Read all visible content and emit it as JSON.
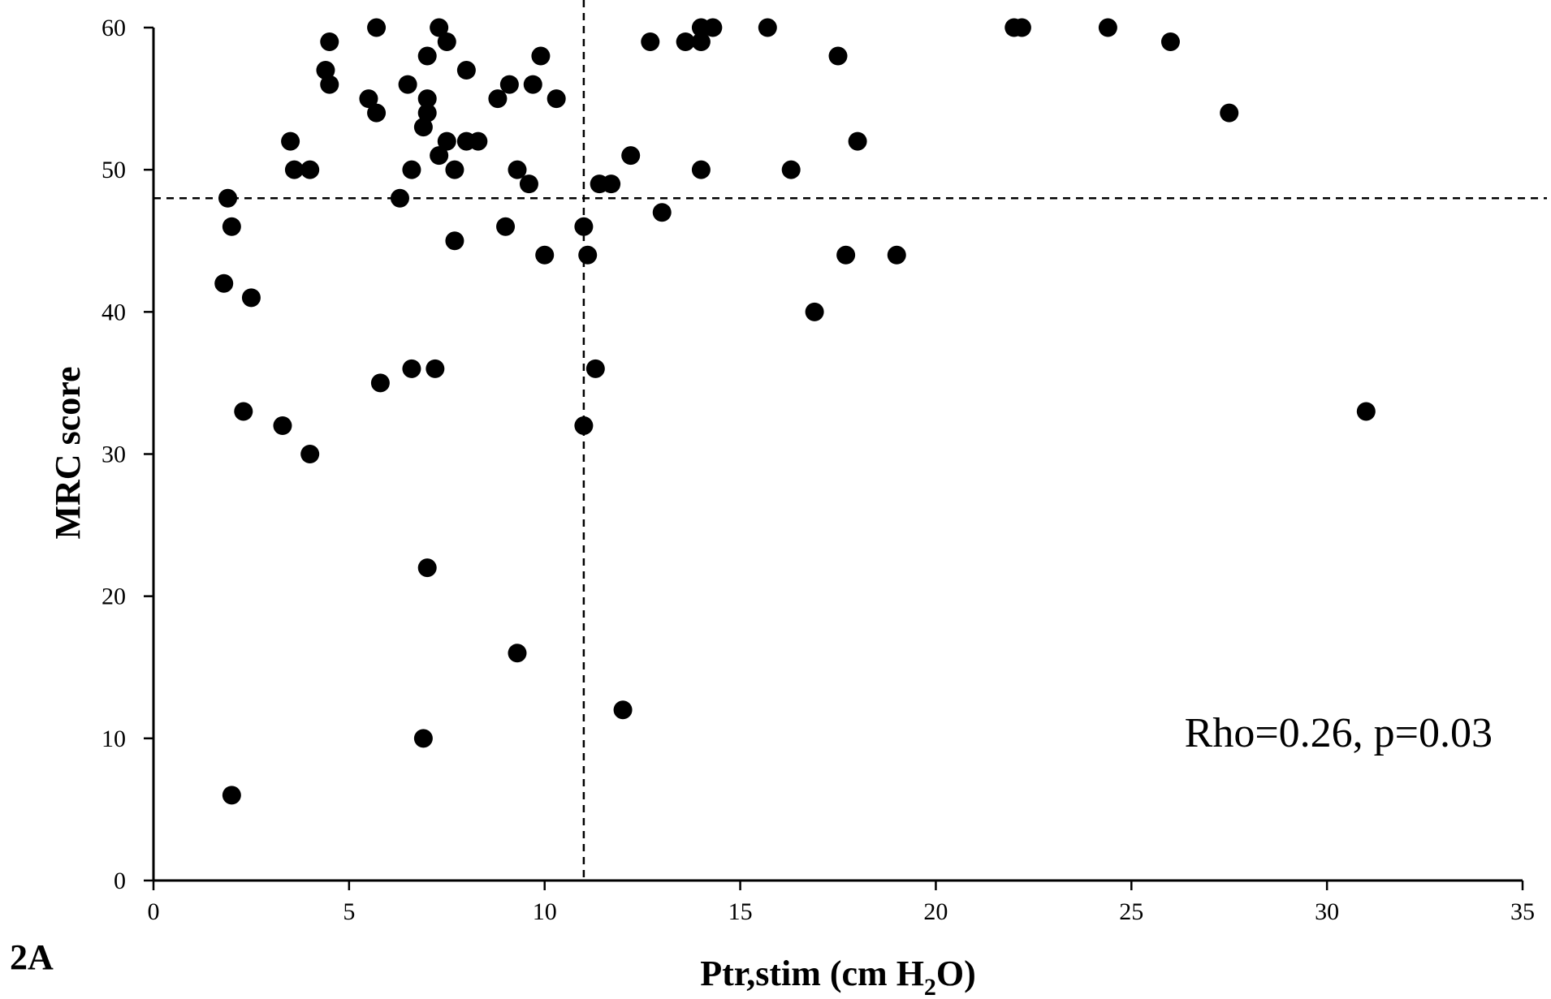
{
  "panel_label": "2A",
  "chart_data": {
    "type": "scatter",
    "xlabel": {
      "main": "Ptr,stim (cm H",
      "sub": "2",
      "end": "O)"
    },
    "ylabel": "MRC score",
    "xlim": [
      0,
      35
    ],
    "ylim": [
      0,
      60
    ],
    "x_ticks": [
      "0",
      "5",
      "10",
      "15",
      "20",
      "25",
      "30",
      "35"
    ],
    "y_ticks": [
      "0",
      "10",
      "20",
      "30",
      "40",
      "50",
      "60"
    ],
    "reference_lines": {
      "vertical_x": 11,
      "horizontal_y": 48
    },
    "annotation": "Rho=0.26, p=0.03",
    "marker_color": "#000000",
    "points": [
      [
        5.7,
        60
      ],
      [
        7.3,
        60
      ],
      [
        14.0,
        60
      ],
      [
        14.3,
        60
      ],
      [
        15.7,
        60
      ],
      [
        22.0,
        60
      ],
      [
        22.2,
        60
      ],
      [
        24.4,
        60
      ],
      [
        4.5,
        59
      ],
      [
        7.5,
        59
      ],
      [
        12.7,
        59
      ],
      [
        13.6,
        59
      ],
      [
        14.0,
        59
      ],
      [
        26.0,
        59
      ],
      [
        7.0,
        58
      ],
      [
        9.9,
        58
      ],
      [
        17.5,
        58
      ],
      [
        4.4,
        57
      ],
      [
        8.0,
        57
      ],
      [
        4.5,
        56
      ],
      [
        6.5,
        56
      ],
      [
        9.1,
        56
      ],
      [
        9.7,
        56
      ],
      [
        5.5,
        55
      ],
      [
        7.0,
        55
      ],
      [
        8.8,
        55
      ],
      [
        10.3,
        55
      ],
      [
        5.7,
        54
      ],
      [
        7.0,
        54
      ],
      [
        27.5,
        54
      ],
      [
        6.9,
        53
      ],
      [
        3.5,
        52
      ],
      [
        7.5,
        52
      ],
      [
        8.0,
        52
      ],
      [
        8.3,
        52
      ],
      [
        18.0,
        52
      ],
      [
        7.3,
        51
      ],
      [
        12.2,
        51
      ],
      [
        3.6,
        50
      ],
      [
        4.0,
        50
      ],
      [
        6.6,
        50
      ],
      [
        7.7,
        50
      ],
      [
        9.3,
        50
      ],
      [
        14.0,
        50
      ],
      [
        16.3,
        50
      ],
      [
        9.6,
        49
      ],
      [
        11.4,
        49
      ],
      [
        11.7,
        49
      ],
      [
        1.9,
        48
      ],
      [
        6.3,
        48
      ],
      [
        13.0,
        47
      ],
      [
        2.0,
        46
      ],
      [
        9.0,
        46
      ],
      [
        11.0,
        46
      ],
      [
        7.7,
        45
      ],
      [
        10.0,
        44
      ],
      [
        11.1,
        44
      ],
      [
        17.7,
        44
      ],
      [
        19.0,
        44
      ],
      [
        1.8,
        42
      ],
      [
        2.5,
        41
      ],
      [
        16.9,
        40
      ],
      [
        6.6,
        36
      ],
      [
        7.2,
        36
      ],
      [
        11.3,
        36
      ],
      [
        5.8,
        35
      ],
      [
        2.3,
        33
      ],
      [
        31.0,
        33
      ],
      [
        3.3,
        32
      ],
      [
        11.0,
        32
      ],
      [
        4.0,
        30
      ],
      [
        7.0,
        22
      ],
      [
        9.3,
        16
      ],
      [
        12.0,
        12
      ],
      [
        6.9,
        10
      ],
      [
        2.0,
        6
      ]
    ]
  }
}
